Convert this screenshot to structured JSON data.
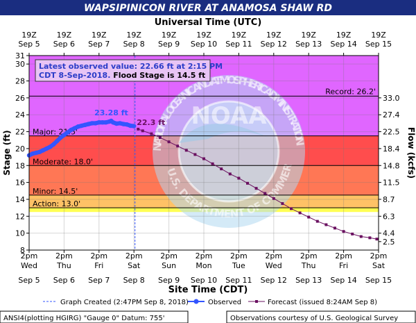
{
  "title": "WAPSIPINICON RIVER AT ANAMOSA SHAW RD",
  "top_axis_title": "Universal Time (UTC)",
  "bottom_axis_title": "Site Time (CDT)",
  "observed_note": {
    "line1": "Latest observed value: 22.66 ft at 2:15 PM",
    "line2a": "CDT 8-Sep-2018.",
    "line2b": " Flood Stage is 14.5 ft"
  },
  "footer": {
    "left": "ANSI4(plotting HGIRG) \"Gauge 0\" Datum: 755'",
    "right": "Observations courtesy of U.S. Geological Survey"
  },
  "legend": {
    "graph_created": "Graph Created (2:47PM Sep 8, 2018)",
    "observed": "Observed",
    "forecast": "Forecast (issued 8:24AM Sep 8)"
  },
  "watermark": {
    "noaa": "NOAA",
    "top_text": "NATIONAL OCEANIC AND ATMOSPHERIC ADMINISTRATION",
    "bottom_text": "U.S. DEPARTMENT OF COMMERCE"
  },
  "colors": {
    "title_bg": "#1a2d80",
    "major": "#ff4d4d",
    "moderate": "#ff7755",
    "minor": "#ffc266",
    "action": "#ffff55",
    "record": "#e066ff",
    "observed": "#3355ff",
    "forecast": "#6a1060"
  },
  "chart_data": {
    "type": "line",
    "ylabel": "Stage (ft)",
    "y2label": "Flow (kcfs)",
    "ylim": [
      8,
      31
    ],
    "y_ticks": [
      8,
      10,
      12,
      14,
      16,
      18,
      20,
      22,
      24,
      26,
      28,
      30,
      31
    ],
    "y2_ticks": [
      {
        "stage": 9.0,
        "label": "2.5"
      },
      {
        "stage": 10.0,
        "label": "4.4"
      },
      {
        "stage": 12.0,
        "label": "6.3"
      },
      {
        "stage": 14.0,
        "label": "8.7"
      },
      {
        "stage": 16.0,
        "label": "11.5"
      },
      {
        "stage": 18.0,
        "label": "14.8"
      },
      {
        "stage": 20.0,
        "label": "18.4"
      },
      {
        "stage": 22.0,
        "label": "22.5"
      },
      {
        "stage": 24.0,
        "label": "27.4"
      },
      {
        "stage": 26.0,
        "label": "33.0"
      }
    ],
    "x_axis_days": [
      "Wed",
      "Thu",
      "Fri",
      "Sat",
      "Sun",
      "Mon",
      "Tue",
      "Wed",
      "Thu",
      "Fri",
      "Sat"
    ],
    "x_axis_dates": [
      "Sep 5",
      "Sep 6",
      "Sep 7",
      "Sep 8",
      "Sep 9",
      "Sep 10",
      "Sep 11",
      "Sep 12",
      "Sep 13",
      "Sep 14",
      "Sep 15"
    ],
    "x_axis_time": "2pm",
    "utc_time": "19Z",
    "flood_categories": [
      {
        "name": "record",
        "label": "Record: 26.2'",
        "stage": 26.2
      },
      {
        "name": "major",
        "label": "Major: 21.5'",
        "stage": 21.5
      },
      {
        "name": "moderate",
        "label": "Moderate: 18.0'",
        "stage": 18.0
      },
      {
        "name": "minor",
        "label": "Minor: 14.5'",
        "stage": 14.5
      },
      {
        "name": "action",
        "label": "Action: 13.0'",
        "stage": 13.0
      }
    ],
    "created_day": 3.03,
    "observed_peak_label": "23.28 ft",
    "observed_peak": {
      "day": 2.35,
      "stage": 23.28
    },
    "forecast_first_label": "22.3 ft",
    "observed": {
      "days": [
        0.0,
        0.1,
        0.2,
        0.3,
        0.4,
        0.5,
        0.6,
        0.7,
        0.8,
        0.9,
        1.0,
        1.1,
        1.2,
        1.3,
        1.4,
        1.5,
        1.6,
        1.7,
        1.8,
        1.9,
        2.0,
        2.1,
        2.2,
        2.3,
        2.35,
        2.4,
        2.5,
        2.6,
        2.7,
        2.8,
        2.9,
        3.0
      ],
      "stage": [
        19.2,
        19.4,
        19.5,
        19.6,
        19.8,
        20.0,
        20.2,
        20.5,
        20.9,
        21.3,
        21.6,
        21.9,
        22.2,
        22.4,
        22.6,
        22.7,
        22.8,
        22.9,
        23.0,
        23.0,
        23.1,
        23.1,
        23.1,
        23.2,
        23.28,
        23.1,
        22.95,
        23.0,
        22.9,
        22.85,
        22.7,
        22.66
      ]
    },
    "forecast": {
      "days": [
        3.12,
        3.25,
        3.5,
        3.75,
        4.0,
        4.25,
        4.5,
        4.75,
        5.0,
        5.25,
        5.5,
        5.75,
        6.0,
        6.25,
        6.5,
        6.75,
        7.0,
        7.25,
        7.5,
        7.75,
        8.0,
        8.25,
        8.5,
        8.75,
        9.0,
        9.25,
        9.5,
        9.75,
        9.95
      ],
      "stage": [
        22.3,
        22.1,
        21.75,
        21.3,
        20.8,
        20.3,
        19.8,
        19.3,
        18.8,
        18.2,
        17.6,
        17.0,
        16.5,
        15.9,
        15.3,
        14.7,
        14.1,
        13.5,
        12.9,
        12.4,
        11.9,
        11.4,
        11.0,
        10.6,
        10.2,
        9.9,
        9.6,
        9.45,
        9.3
      ]
    }
  }
}
